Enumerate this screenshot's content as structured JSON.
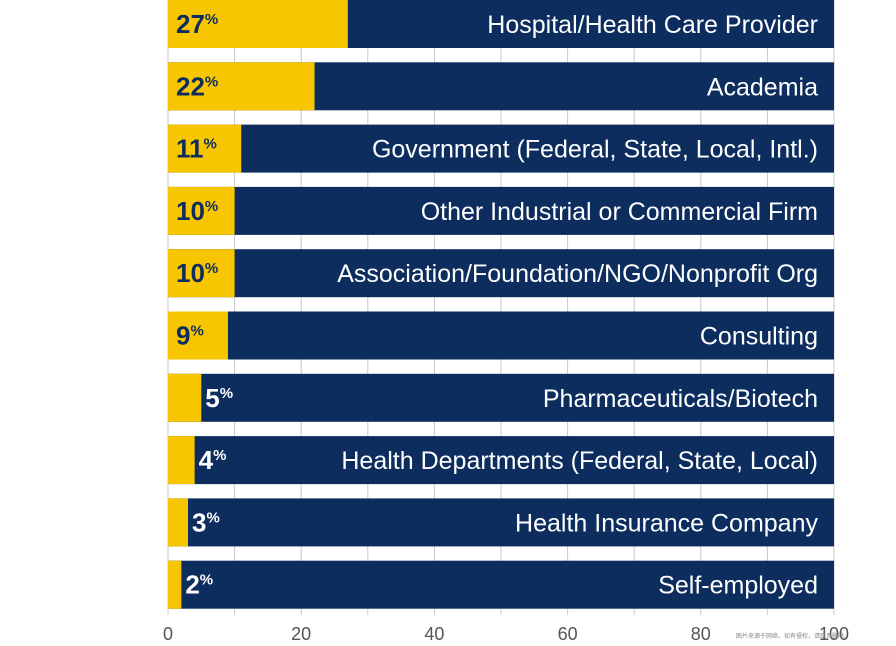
{
  "chart_data": {
    "type": "bar",
    "orientation": "horizontal",
    "categories": [
      "Hospital/Health Care Provider",
      "Academia",
      "Government (Federal, State, Local, Intl.)",
      "Other Industrial or Commercial Firm",
      "Association/Foundation/NGO/Nonprofit Org",
      "Consulting",
      "Pharmaceuticals/Biotech",
      "Health Departments (Federal, State, Local)",
      "Health Insurance Company",
      "Self-employed"
    ],
    "values": [
      27,
      22,
      11,
      10,
      10,
      9,
      5,
      4,
      3,
      2
    ],
    "value_labels": [
      "27",
      "22",
      "11",
      "10",
      "10",
      "9",
      "5",
      "4",
      "3",
      "2"
    ],
    "value_suffix": "%",
    "xlim": [
      0,
      100
    ],
    "x_ticks": [
      "0",
      "20",
      "40",
      "60",
      "80",
      "100"
    ],
    "grid": true,
    "colors": {
      "value": "#f7c600",
      "remainder": "#0c2d5e",
      "grid": "#c8c8c8"
    },
    "watermark": "图片来源于网络，如有侵权，请联系删除。"
  }
}
